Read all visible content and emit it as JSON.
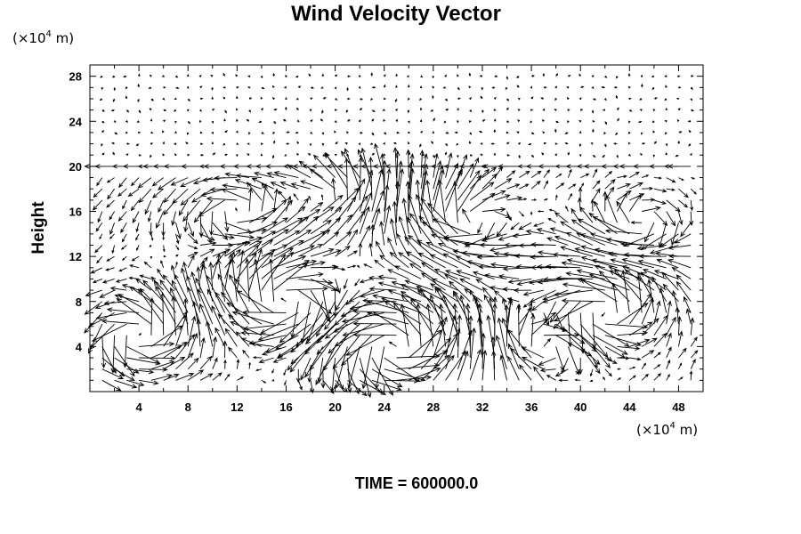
{
  "chart_data": {
    "type": "vector-field",
    "title": "Wind Velocity Vector",
    "ylabel": "Height",
    "y_unit": "(×10",
    "x_unit": "(×10",
    "unit_exp": "4",
    "unit_tail": " m)",
    "footer": "TIME = 600000.0",
    "xlim": [
      0,
      50
    ],
    "ylim": [
      0,
      29
    ],
    "x_ticks": [
      "4",
      "8",
      "12",
      "16",
      "20",
      "24",
      "28",
      "32",
      "36",
      "40",
      "44",
      "48"
    ],
    "x_tick_values": [
      4,
      8,
      12,
      16,
      20,
      24,
      28,
      32,
      36,
      40,
      44,
      48
    ],
    "y_ticks": [
      "4",
      "8",
      "12",
      "16",
      "20",
      "24",
      "28"
    ],
    "y_tick_values": [
      4,
      8,
      12,
      16,
      20,
      24,
      28
    ],
    "grid": false,
    "arrow_color": "#000000",
    "field_note": "arrows sampled on ~1x1 grid; strong circulation below height 20, calm above"
  }
}
